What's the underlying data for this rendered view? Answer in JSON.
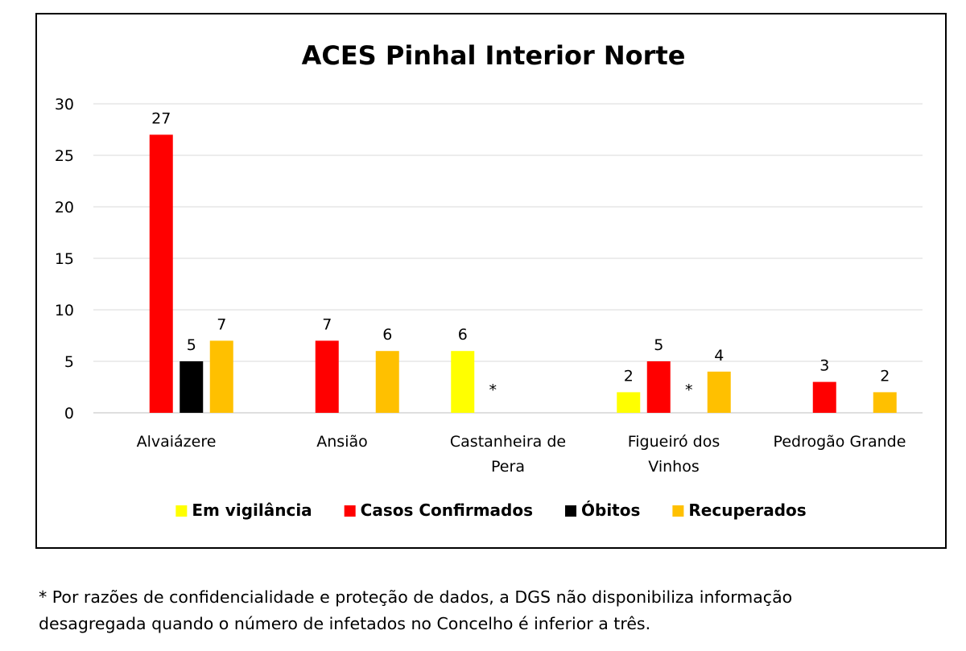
{
  "chart_data": {
    "type": "bar",
    "title": "ACES Pinhal Interior Norte",
    "xlabel": "",
    "ylabel": "",
    "ylim": [
      0,
      30
    ],
    "yticks": [
      0,
      5,
      10,
      15,
      20,
      25,
      30
    ],
    "grid": true,
    "legend_position": "bottom",
    "categories": [
      [
        "Alvaiázere"
      ],
      [
        "Ansião"
      ],
      [
        "Castanheira de",
        "Pera"
      ],
      [
        "Figueiró dos",
        "Vinhos"
      ],
      [
        "Pedrogão Grande"
      ]
    ],
    "series": [
      {
        "name": "Em vigilância",
        "color": "#FFFF00",
        "values": [
          null,
          null,
          6,
          2,
          null
        ]
      },
      {
        "name": "Casos Confirmados",
        "color": "#FF0000",
        "values": [
          27,
          7,
          null,
          5,
          3
        ]
      },
      {
        "name": "Óbitos",
        "color": "#000000",
        "values": [
          5,
          null,
          null,
          null,
          null
        ]
      },
      {
        "name": "Recuperados",
        "color": "#FFC000",
        "values": [
          7,
          6,
          null,
          4,
          2
        ]
      }
    ],
    "annotations": [
      {
        "text": "*",
        "category": 2,
        "series": 1
      },
      {
        "text": "*",
        "category": 3,
        "series": 2
      }
    ]
  },
  "footnote": {
    "line1": "* Por razões de confidencialidade e proteção de dados, a DGS não disponibiliza informação",
    "line2": "desagregada quando o número de infetados no Concelho é inferior a três."
  }
}
